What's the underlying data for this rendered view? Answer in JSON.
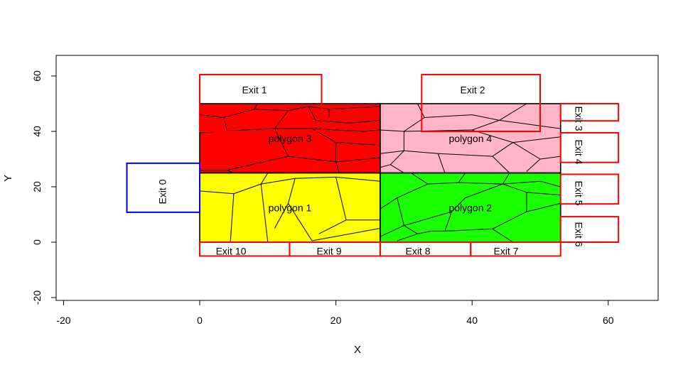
{
  "chart_data": {
    "type": "diagram-plot",
    "title": "",
    "xlabel": "X",
    "ylabel": "Y",
    "xlim": [
      -21.5,
      67.5
    ],
    "ylim": [
      -21.5,
      67.5
    ],
    "xticks": [
      -20,
      0,
      20,
      40,
      60
    ],
    "yticks": [
      -20,
      0,
      20,
      40,
      60
    ],
    "grid": false,
    "polygons": [
      {
        "name": "polygon 1",
        "color": "#ffff00",
        "x": [
          0,
          26.5
        ],
        "y": [
          0,
          25
        ]
      },
      {
        "name": "polygon 2",
        "color": "#1aff00",
        "x": [
          26.5,
          53
        ],
        "y": [
          0,
          25
        ]
      },
      {
        "name": "polygon 3",
        "color": "#ff0000",
        "x": [
          0,
          26.5
        ],
        "y": [
          25,
          50
        ]
      },
      {
        "name": "polygon 4",
        "color": "#ffb5c5",
        "x": [
          26.5,
          53
        ],
        "y": [
          25,
          50
        ]
      }
    ],
    "exits": [
      {
        "name": "Exit 0",
        "color": "#0000ff",
        "x": [
          -10.7,
          0
        ],
        "y": [
          10.8,
          28.5
        ],
        "rotate": -90
      },
      {
        "name": "Exit 1",
        "color": "#ff0000",
        "x": [
          0,
          17.9
        ],
        "y": [
          40,
          60.5
        ],
        "rotate": 0
      },
      {
        "name": "Exit 2",
        "color": "#ff0000",
        "x": [
          32.6,
          50
        ],
        "y": [
          40,
          60.5
        ],
        "rotate": 0
      },
      {
        "name": "Exit 3",
        "color": "#ff0000",
        "x": [
          53,
          61.5
        ],
        "y": [
          43.8,
          50
        ],
        "rotate": 90
      },
      {
        "name": "Exit 4",
        "color": "#ff0000",
        "x": [
          53,
          61.5
        ],
        "y": [
          28.8,
          39.5
        ],
        "rotate": 90
      },
      {
        "name": "Exit 5",
        "color": "#ff0000",
        "x": [
          53,
          61.5
        ],
        "y": [
          13.8,
          24.5
        ],
        "rotate": 90
      },
      {
        "name": "Exit 6",
        "color": "#ff0000",
        "x": [
          53,
          61.5
        ],
        "y": [
          0,
          9.2
        ],
        "rotate": 90
      },
      {
        "name": "Exit 7",
        "color": "#ff0000",
        "x": [
          39.8,
          53
        ],
        "y": [
          -5,
          0
        ],
        "rotate": 0
      },
      {
        "name": "Exit 8",
        "color": "#ff0000",
        "x": [
          26.5,
          39.8
        ],
        "y": [
          -5,
          0
        ],
        "rotate": 0
      },
      {
        "name": "Exit 9",
        "color": "#ff0000",
        "x": [
          13.2,
          26.5
        ],
        "y": [
          -5,
          0
        ],
        "rotate": 0
      },
      {
        "name": "Exit 10",
        "color": "#ff0000",
        "x": [
          0,
          13.2
        ],
        "y": [
          -5,
          0
        ],
        "rotate": 0
      }
    ],
    "cell_edges": [
      [
        [
          0,
          39.5
        ],
        [
          4,
          40.2
        ]
      ],
      [
        [
          4,
          40.2
        ],
        [
          11,
          41
        ]
      ],
      [
        [
          11,
          41
        ],
        [
          16.5,
          41
        ]
      ],
      [
        [
          16.5,
          41
        ],
        [
          24,
          40
        ]
      ],
      [
        [
          24,
          40
        ],
        [
          26.5,
          40.5
        ]
      ],
      [
        [
          4,
          40.2
        ],
        [
          3.5,
          45
        ]
      ],
      [
        [
          3.5,
          45
        ],
        [
          0,
          46
        ]
      ],
      [
        [
          3.5,
          45
        ],
        [
          8,
          48
        ]
      ],
      [
        [
          8,
          48
        ],
        [
          8.5,
          50
        ]
      ],
      [
        [
          8,
          48
        ],
        [
          13,
          47.5
        ]
      ],
      [
        [
          13,
          47.5
        ],
        [
          16,
          49
        ]
      ],
      [
        [
          16,
          49
        ],
        [
          19,
          48
        ]
      ],
      [
        [
          19,
          48
        ],
        [
          23,
          48.5
        ]
      ],
      [
        [
          23,
          48.5
        ],
        [
          26.5,
          49
        ]
      ],
      [
        [
          13,
          47.5
        ],
        [
          11,
          41
        ]
      ],
      [
        [
          11,
          41
        ],
        [
          13,
          31
        ]
      ],
      [
        [
          13,
          31
        ],
        [
          20,
          29
        ]
      ],
      [
        [
          20,
          29
        ],
        [
          26.5,
          30.5
        ]
      ],
      [
        [
          13,
          31
        ],
        [
          4,
          26
        ]
      ],
      [
        [
          4,
          26
        ],
        [
          0,
          26
        ]
      ],
      [
        [
          16.5,
          41
        ],
        [
          20,
          36
        ]
      ],
      [
        [
          20,
          36
        ],
        [
          26.5,
          35
        ]
      ],
      [
        [
          20,
          36
        ],
        [
          20,
          29
        ]
      ],
      [
        [
          20,
          29
        ],
        [
          20.5,
          25
        ]
      ],
      [
        [
          4,
          26
        ],
        [
          5,
          25
        ]
      ],
      [
        [
          16,
          49
        ],
        [
          17,
          44
        ]
      ],
      [
        [
          17,
          44
        ],
        [
          22,
          43
        ]
      ],
      [
        [
          22,
          43
        ],
        [
          26.5,
          44
        ]
      ],
      [
        [
          19,
          48
        ],
        [
          19,
          45
        ]
      ],
      [
        [
          0,
          18.5
        ],
        [
          5,
          17.5
        ]
      ],
      [
        [
          5,
          17.5
        ],
        [
          9,
          21
        ]
      ],
      [
        [
          9,
          21
        ],
        [
          14,
          23
        ]
      ],
      [
        [
          14,
          23
        ],
        [
          20,
          23.5
        ]
      ],
      [
        [
          20,
          23.5
        ],
        [
          26.5,
          22
        ]
      ],
      [
        [
          9,
          21
        ],
        [
          10,
          25
        ]
      ],
      [
        [
          5,
          17.5
        ],
        [
          4.5,
          0
        ]
      ],
      [
        [
          9,
          21
        ],
        [
          10,
          0
        ]
      ],
      [
        [
          14,
          23
        ],
        [
          13,
          14
        ]
      ],
      [
        [
          13,
          14
        ],
        [
          16.5,
          0.5
        ]
      ],
      [
        [
          16.5,
          0.5
        ],
        [
          26.5,
          5
        ]
      ],
      [
        [
          20,
          23.5
        ],
        [
          21.5,
          8
        ]
      ],
      [
        [
          21.5,
          8
        ],
        [
          26.5,
          8
        ]
      ],
      [
        [
          21.5,
          8
        ],
        [
          17.5,
          3
        ]
      ],
      [
        [
          13,
          14
        ],
        [
          11,
          5
        ]
      ],
      [
        [
          26.5,
          12
        ],
        [
          29,
          16
        ]
      ],
      [
        [
          29,
          16
        ],
        [
          33.5,
          21
        ]
      ],
      [
        [
          33.5,
          21
        ],
        [
          38,
          21.5
        ]
      ],
      [
        [
          38,
          21.5
        ],
        [
          44.5,
          21
        ]
      ],
      [
        [
          44.5,
          21
        ],
        [
          50,
          22
        ]
      ],
      [
        [
          50,
          22
        ],
        [
          53,
          20
        ]
      ],
      [
        [
          33.5,
          21
        ],
        [
          31,
          25
        ]
      ],
      [
        [
          38,
          21.5
        ],
        [
          39,
          25
        ]
      ],
      [
        [
          44.5,
          21
        ],
        [
          45.5,
          25
        ]
      ],
      [
        [
          29,
          16
        ],
        [
          30,
          6
        ]
      ],
      [
        [
          30,
          6
        ],
        [
          32,
          3
        ]
      ],
      [
        [
          32,
          3
        ],
        [
          34,
          4
        ]
      ],
      [
        [
          34,
          4
        ],
        [
          36,
          4
        ]
      ],
      [
        [
          36,
          4
        ],
        [
          43,
          4.8
        ]
      ],
      [
        [
          43,
          4.8
        ],
        [
          46,
          0
        ]
      ],
      [
        [
          43,
          4.8
        ],
        [
          48,
          11
        ]
      ],
      [
        [
          48,
          11
        ],
        [
          53,
          14
        ]
      ],
      [
        [
          48,
          11
        ],
        [
          48,
          18
        ]
      ],
      [
        [
          48,
          18
        ],
        [
          53,
          17
        ]
      ],
      [
        [
          48,
          18
        ],
        [
          44.5,
          21
        ]
      ],
      [
        [
          26.5,
          2
        ],
        [
          30,
          6
        ]
      ],
      [
        [
          32,
          3
        ],
        [
          29,
          0.5
        ]
      ],
      [
        [
          36,
          4
        ],
        [
          37,
          11
        ]
      ],
      [
        [
          37,
          11
        ],
        [
          39,
          16
        ]
      ],
      [
        [
          39,
          16
        ],
        [
          44.5,
          21
        ]
      ],
      [
        [
          37,
          11
        ],
        [
          30,
          6
        ]
      ],
      [
        [
          26.5,
          40.5
        ],
        [
          30,
          40
        ]
      ],
      [
        [
          30,
          40
        ],
        [
          33,
          45
        ]
      ],
      [
        [
          33,
          45
        ],
        [
          32,
          50
        ]
      ],
      [
        [
          33,
          45
        ],
        [
          40,
          46
        ]
      ],
      [
        [
          40,
          46
        ],
        [
          44,
          44
        ]
      ],
      [
        [
          44,
          44
        ],
        [
          48,
          50
        ]
      ],
      [
        [
          44,
          44
        ],
        [
          53,
          41
        ]
      ],
      [
        [
          30,
          40
        ],
        [
          30,
          33
        ]
      ],
      [
        [
          30,
          33
        ],
        [
          26.5,
          32
        ]
      ],
      [
        [
          30,
          33
        ],
        [
          35,
          32
        ]
      ],
      [
        [
          35,
          32
        ],
        [
          36,
          25
        ]
      ],
      [
        [
          35,
          32
        ],
        [
          43,
          31
        ]
      ],
      [
        [
          43,
          31
        ],
        [
          46,
          36
        ]
      ],
      [
        [
          46,
          36
        ],
        [
          53,
          38
        ]
      ],
      [
        [
          46,
          36
        ],
        [
          40,
          40.5
        ]
      ],
      [
        [
          40,
          40.5
        ],
        [
          30,
          40
        ]
      ],
      [
        [
          40,
          40.5
        ],
        [
          44,
          44
        ]
      ],
      [
        [
          43,
          31
        ],
        [
          45.5,
          25
        ]
      ],
      [
        [
          46,
          36
        ],
        [
          50,
          30
        ]
      ],
      [
        [
          50,
          30
        ],
        [
          53,
          31
        ]
      ],
      [
        [
          50,
          30
        ],
        [
          48,
          25.5
        ]
      ],
      [
        [
          30,
          33
        ],
        [
          28,
          28
        ]
      ],
      [
        [
          28,
          28
        ],
        [
          26.5,
          27
        ]
      ],
      [
        [
          28,
          28
        ],
        [
          30,
          25
        ]
      ]
    ]
  }
}
